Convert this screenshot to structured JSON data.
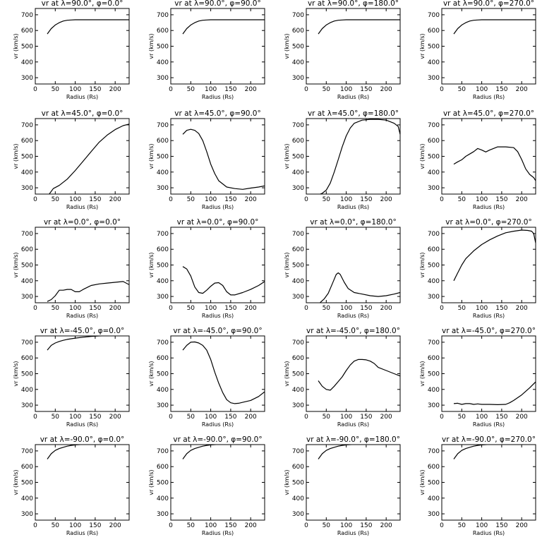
{
  "chart_data": [
    {
      "type": "line",
      "title": "vr at λ=90.0°, φ=0.0°",
      "xlabel": "Radius (Rs)",
      "ylabel": "vr (km/s)",
      "xlim": [
        0,
        235
      ],
      "ylim": [
        260,
        740
      ],
      "xticks": [
        "0",
        "50",
        "100",
        "150",
        "200"
      ],
      "yticks": [
        "300",
        "400",
        "500",
        "600",
        "700"
      ],
      "x": [
        30,
        40,
        50,
        60,
        70,
        80,
        90,
        100,
        120,
        150,
        200,
        235
      ],
      "y": [
        578,
        612,
        635,
        650,
        660,
        665,
        667,
        668,
        668,
        668,
        668,
        668
      ]
    },
    {
      "type": "line",
      "title": "vr at λ=90.0°, φ=90.0°",
      "xlabel": "Radius (Rs)",
      "ylabel": "vr (km/s)",
      "xlim": [
        0,
        235
      ],
      "ylim": [
        260,
        740
      ],
      "xticks": [
        "0",
        "50",
        "100",
        "150",
        "200"
      ],
      "yticks": [
        "300",
        "400",
        "500",
        "600",
        "700"
      ],
      "x": [
        30,
        40,
        50,
        60,
        70,
        80,
        90,
        100,
        120,
        150,
        200,
        235
      ],
      "y": [
        578,
        612,
        635,
        650,
        660,
        665,
        667,
        668,
        668,
        668,
        668,
        668
      ]
    },
    {
      "type": "line",
      "title": "vr at λ=90.0°, φ=180.0°",
      "xlabel": "Radius (Rs)",
      "ylabel": "vr (km/s)",
      "xlim": [
        0,
        235
      ],
      "ylim": [
        260,
        740
      ],
      "xticks": [
        "0",
        "50",
        "100",
        "150",
        "200"
      ],
      "yticks": [
        "300",
        "400",
        "500",
        "600",
        "700"
      ],
      "x": [
        30,
        40,
        50,
        60,
        70,
        80,
        90,
        100,
        120,
        150,
        200,
        235
      ],
      "y": [
        578,
        612,
        635,
        650,
        660,
        665,
        667,
        668,
        668,
        668,
        668,
        668
      ]
    },
    {
      "type": "line",
      "title": "vr at λ=90.0°, φ=270.0°",
      "xlabel": "Radius (Rs)",
      "ylabel": "vr (km/s)",
      "xlim": [
        0,
        235
      ],
      "ylim": [
        260,
        740
      ],
      "xticks": [
        "0",
        "50",
        "100",
        "150",
        "200"
      ],
      "yticks": [
        "300",
        "400",
        "500",
        "600",
        "700"
      ],
      "x": [
        30,
        40,
        50,
        60,
        70,
        80,
        90,
        100,
        120,
        150,
        200,
        235
      ],
      "y": [
        578,
        612,
        635,
        650,
        660,
        665,
        667,
        668,
        668,
        668,
        668,
        668
      ]
    },
    {
      "type": "line",
      "title": "vr at λ=45.0°, φ=0.0°",
      "xlabel": "Radius (Rs)",
      "ylabel": "vr (km/s)",
      "xlim": [
        0,
        235
      ],
      "ylim": [
        260,
        740
      ],
      "xticks": [
        "0",
        "50",
        "100",
        "150",
        "200"
      ],
      "yticks": [
        "300",
        "400",
        "500",
        "600",
        "700"
      ],
      "x": [
        35,
        45,
        60,
        80,
        100,
        120,
        140,
        160,
        180,
        200,
        220,
        235
      ],
      "y": [
        260,
        295,
        315,
        355,
        410,
        470,
        530,
        590,
        635,
        670,
        695,
        705
      ]
    },
    {
      "type": "line",
      "title": "vr at λ=45.0°, φ=90.0°",
      "xlabel": "Radius (Rs)",
      "ylabel": "vr (km/s)",
      "xlim": [
        0,
        235
      ],
      "ylim": [
        260,
        740
      ],
      "xticks": [
        "0",
        "50",
        "100",
        "150",
        "200"
      ],
      "yticks": [
        "300",
        "400",
        "500",
        "600",
        "700"
      ],
      "x": [
        30,
        40,
        50,
        60,
        70,
        80,
        90,
        100,
        110,
        120,
        140,
        160,
        180,
        200,
        220,
        235
      ],
      "y": [
        640,
        665,
        672,
        665,
        645,
        600,
        530,
        450,
        390,
        345,
        305,
        295,
        290,
        298,
        305,
        312
      ]
    },
    {
      "type": "line",
      "title": "vr at λ=45.0°, φ=180.0°",
      "xlabel": "Radius (Rs)",
      "ylabel": "vr (km/s)",
      "xlim": [
        0,
        235
      ],
      "ylim": [
        260,
        740
      ],
      "xticks": [
        "0",
        "50",
        "100",
        "150",
        "200"
      ],
      "yticks": [
        "300",
        "400",
        "500",
        "600",
        "700"
      ],
      "x": [
        30,
        40,
        50,
        60,
        70,
        80,
        90,
        100,
        110,
        120,
        140,
        160,
        180,
        200,
        220,
        230,
        235
      ],
      "y": [
        255,
        265,
        285,
        330,
        400,
        480,
        560,
        630,
        680,
        710,
        730,
        735,
        735,
        730,
        710,
        690,
        640
      ]
    },
    {
      "type": "line",
      "title": "vr at λ=45.0°, φ=270.0°",
      "xlabel": "Radius (Rs)",
      "ylabel": "vr (km/s)",
      "xlim": [
        0,
        235
      ],
      "ylim": [
        260,
        740
      ],
      "xticks": [
        "0",
        "50",
        "100",
        "150",
        "200"
      ],
      "yticks": [
        "300",
        "400",
        "500",
        "600",
        "700"
      ],
      "x": [
        30,
        40,
        50,
        60,
        70,
        80,
        90,
        100,
        110,
        120,
        140,
        160,
        180,
        190,
        200,
        210,
        220,
        230,
        235
      ],
      "y": [
        450,
        465,
        478,
        500,
        515,
        530,
        550,
        540,
        528,
        540,
        560,
        560,
        555,
        530,
        480,
        420,
        385,
        365,
        345
      ]
    },
    {
      "type": "line",
      "title": "vr at λ=0.0°, φ=0.0°",
      "xlabel": "Radius (Rs)",
      "ylabel": "vr (km/s)",
      "xlim": [
        0,
        235
      ],
      "ylim": [
        260,
        740
      ],
      "xticks": [
        "0",
        "50",
        "100",
        "150",
        "200"
      ],
      "yticks": [
        "300",
        "400",
        "500",
        "600",
        "700"
      ],
      "x": [
        30,
        40,
        50,
        60,
        70,
        80,
        90,
        100,
        110,
        120,
        140,
        160,
        180,
        200,
        220,
        235
      ],
      "y": [
        268,
        280,
        305,
        340,
        340,
        345,
        345,
        330,
        330,
        345,
        370,
        380,
        385,
        390,
        395,
        375
      ]
    },
    {
      "type": "line",
      "title": "vr at λ=0.0°, φ=90.0°",
      "xlabel": "Radius (Rs)",
      "ylabel": "vr (km/s)",
      "xlim": [
        0,
        235
      ],
      "ylim": [
        260,
        740
      ],
      "xticks": [
        "0",
        "50",
        "100",
        "150",
        "200"
      ],
      "yticks": [
        "300",
        "400",
        "500",
        "600",
        "700"
      ],
      "x": [
        30,
        40,
        50,
        60,
        70,
        80,
        90,
        100,
        110,
        120,
        130,
        140,
        150,
        160,
        180,
        200,
        220,
        235
      ],
      "y": [
        490,
        475,
        430,
        360,
        325,
        320,
        340,
        365,
        385,
        388,
        370,
        330,
        310,
        310,
        325,
        345,
        370,
        395
      ]
    },
    {
      "type": "line",
      "title": "vr at λ=0.0°, φ=180.0°",
      "xlabel": "Radius (Rs)",
      "ylabel": "vr (km/s)",
      "xlim": [
        0,
        235
      ],
      "ylim": [
        260,
        740
      ],
      "xticks": [
        "0",
        "50",
        "100",
        "150",
        "200"
      ],
      "yticks": [
        "300",
        "400",
        "500",
        "600",
        "700"
      ],
      "x": [
        35,
        45,
        55,
        65,
        75,
        80,
        85,
        95,
        105,
        120,
        140,
        160,
        180,
        200,
        220,
        235
      ],
      "y": [
        262,
        285,
        320,
        380,
        440,
        450,
        440,
        390,
        350,
        325,
        315,
        305,
        300,
        305,
        315,
        325
      ]
    },
    {
      "type": "line",
      "title": "vr at λ=0.0°, φ=270.0°",
      "xlabel": "Radius (Rs)",
      "ylabel": "vr (km/s)",
      "xlim": [
        0,
        235
      ],
      "ylim": [
        260,
        740
      ],
      "xticks": [
        "0",
        "50",
        "100",
        "150",
        "200"
      ],
      "yticks": [
        "300",
        "400",
        "500",
        "600",
        "700"
      ],
      "x": [
        30,
        40,
        50,
        60,
        80,
        100,
        120,
        140,
        160,
        180,
        200,
        215,
        225,
        230,
        235
      ],
      "y": [
        400,
        450,
        500,
        540,
        590,
        630,
        660,
        685,
        705,
        715,
        722,
        720,
        715,
        700,
        640
      ]
    },
    {
      "type": "line",
      "title": "vr at λ=-45.0°, φ=0.0°",
      "xlabel": "Radius (Rs)",
      "ylabel": "vr (km/s)",
      "xlim": [
        0,
        235
      ],
      "ylim": [
        260,
        740
      ],
      "xticks": [
        "0",
        "50",
        "100",
        "150",
        "200"
      ],
      "yticks": [
        "300",
        "400",
        "500",
        "600",
        "700"
      ],
      "x": [
        30,
        40,
        50,
        60,
        70,
        80,
        90,
        100,
        120,
        140,
        160,
        180,
        200,
        220,
        235
      ],
      "y": [
        650,
        680,
        695,
        705,
        712,
        718,
        722,
        726,
        732,
        737,
        740,
        742,
        743,
        744,
        745
      ]
    },
    {
      "type": "line",
      "title": "vr at λ=-45.0°, φ=90.0°",
      "xlabel": "Radius (Rs)",
      "ylabel": "vr (km/s)",
      "xlim": [
        0,
        235
      ],
      "ylim": [
        260,
        740
      ],
      "xticks": [
        "0",
        "50",
        "100",
        "150",
        "200"
      ],
      "yticks": [
        "300",
        "400",
        "500",
        "600",
        "700"
      ],
      "x": [
        30,
        40,
        50,
        60,
        70,
        80,
        90,
        100,
        110,
        120,
        130,
        140,
        150,
        160,
        170,
        180,
        200,
        220,
        235
      ],
      "y": [
        650,
        680,
        700,
        702,
        695,
        680,
        650,
        590,
        510,
        440,
        380,
        335,
        315,
        310,
        312,
        318,
        330,
        355,
        385
      ]
    },
    {
      "type": "line",
      "title": "vr at λ=-45.0°, φ=180.0°",
      "xlabel": "Radius (Rs)",
      "ylabel": "vr (km/s)",
      "xlim": [
        0,
        235
      ],
      "ylim": [
        260,
        740
      ],
      "xticks": [
        "0",
        "50",
        "100",
        "150",
        "200"
      ],
      "yticks": [
        "300",
        "400",
        "500",
        "600",
        "700"
      ],
      "x": [
        30,
        40,
        50,
        60,
        70,
        80,
        90,
        100,
        110,
        120,
        130,
        140,
        150,
        160,
        170,
        180,
        200,
        220,
        235
      ],
      "y": [
        455,
        420,
        400,
        395,
        420,
        450,
        480,
        520,
        555,
        580,
        590,
        590,
        588,
        580,
        565,
        540,
        520,
        500,
        485
      ]
    },
    {
      "type": "line",
      "title": "vr at λ=-45.0°, φ=270.0°",
      "xlabel": "Radius (Rs)",
      "ylabel": "vr (km/s)",
      "xlim": [
        0,
        235
      ],
      "ylim": [
        260,
        740
      ],
      "xticks": [
        "0",
        "50",
        "100",
        "150",
        "200"
      ],
      "yticks": [
        "300",
        "400",
        "500",
        "600",
        "700"
      ],
      "x": [
        30,
        40,
        50,
        60,
        70,
        80,
        90,
        100,
        120,
        140,
        160,
        170,
        180,
        200,
        220,
        235
      ],
      "y": [
        310,
        312,
        305,
        310,
        310,
        305,
        308,
        305,
        305,
        303,
        305,
        315,
        330,
        365,
        410,
        448
      ]
    },
    {
      "type": "line",
      "title": "vr at λ=-90.0°, φ=0.0°",
      "xlabel": "Radius (Rs)",
      "ylabel": "vr (km/s)",
      "xlim": [
        0,
        235
      ],
      "ylim": [
        260,
        740
      ],
      "xticks": [
        "0",
        "50",
        "100",
        "150",
        "200"
      ],
      "yticks": [
        "300",
        "400",
        "500",
        "600",
        "700"
      ],
      "x": [
        30,
        40,
        50,
        60,
        70,
        80,
        90,
        100,
        120,
        140,
        160,
        180,
        200,
        220,
        235
      ],
      "y": [
        648,
        682,
        703,
        715,
        723,
        730,
        735,
        738,
        742,
        745,
        746,
        747,
        748,
        748,
        749
      ]
    },
    {
      "type": "line",
      "title": "vr at λ=-90.0°, φ=90.0°",
      "xlabel": "Radius (Rs)",
      "ylabel": "vr (km/s)",
      "xlim": [
        0,
        235
      ],
      "ylim": [
        260,
        740
      ],
      "xticks": [
        "0",
        "50",
        "100",
        "150",
        "200"
      ],
      "yticks": [
        "300",
        "400",
        "500",
        "600",
        "700"
      ],
      "x": [
        30,
        40,
        50,
        60,
        70,
        80,
        90,
        100,
        120,
        140,
        160,
        180,
        200,
        220,
        235
      ],
      "y": [
        648,
        682,
        703,
        715,
        723,
        730,
        735,
        738,
        742,
        745,
        746,
        747,
        748,
        748,
        749
      ]
    },
    {
      "type": "line",
      "title": "vr at λ=-90.0°, φ=180.0°",
      "xlabel": "Radius (Rs)",
      "ylabel": "vr (km/s)",
      "xlim": [
        0,
        235
      ],
      "ylim": [
        260,
        740
      ],
      "xticks": [
        "0",
        "50",
        "100",
        "150",
        "200"
      ],
      "yticks": [
        "300",
        "400",
        "500",
        "600",
        "700"
      ],
      "x": [
        30,
        40,
        50,
        60,
        70,
        80,
        90,
        100,
        120,
        140,
        160,
        180,
        200,
        220,
        235
      ],
      "y": [
        648,
        682,
        703,
        715,
        723,
        730,
        735,
        738,
        742,
        745,
        746,
        747,
        748,
        748,
        749
      ]
    },
    {
      "type": "line",
      "title": "vr at λ=-90.0°, φ=270.0°",
      "xlabel": "Radius (Rs)",
      "ylabel": "vr (km/s)",
      "xlim": [
        0,
        235
      ],
      "ylim": [
        260,
        740
      ],
      "xticks": [
        "0",
        "50",
        "100",
        "150",
        "200"
      ],
      "yticks": [
        "300",
        "400",
        "500",
        "600",
        "700"
      ],
      "x": [
        30,
        40,
        50,
        60,
        70,
        80,
        90,
        100,
        120,
        140,
        160,
        180,
        200,
        220,
        235
      ],
      "y": [
        648,
        682,
        703,
        715,
        723,
        730,
        735,
        738,
        742,
        745,
        746,
        747,
        748,
        748,
        749
      ]
    }
  ]
}
